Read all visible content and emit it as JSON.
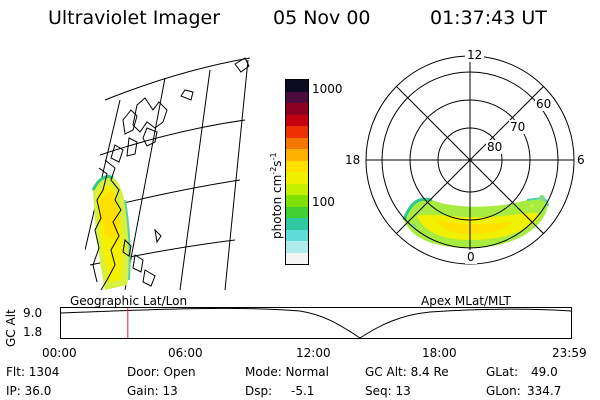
{
  "header": {
    "instrument": "Ultraviolet Imager",
    "date": "05 Nov 00",
    "time": "01:37:43 UT"
  },
  "colorbar": {
    "label_main": "photon cm",
    "label_exp1": "-2",
    "label_mid": "s",
    "label_exp2": "-1",
    "tick_top": "1000",
    "tick_mid": "100",
    "colors": [
      "#0b0b24",
      "#4b0b3c",
      "#8b0020",
      "#c40010",
      "#ee3000",
      "#f47800",
      "#ffb000",
      "#ffe000",
      "#eef000",
      "#c4f000",
      "#80e000",
      "#40d030",
      "#30c8a0",
      "#60dcd8",
      "#b0ecec",
      "#f4f4f4"
    ]
  },
  "polar_plot": {
    "mlt_labels": {
      "top": "12",
      "left": "18",
      "right": "6",
      "bottom": "0"
    },
    "lat_labels": [
      "60",
      "70",
      "80"
    ]
  },
  "timeline": {
    "left_label": "Geographic Lat/Lon",
    "right_label": "Apex MLat/MLT",
    "axis_title": "GC Alt",
    "y_top": "9.0",
    "y_bottom": "1.8",
    "x_ticks": [
      "00:00",
      "06:00",
      "12:00",
      "18:00",
      "23:59"
    ],
    "current_time_fraction": 0.131
  },
  "info": {
    "flt": "Flt: 1304",
    "ip": "IP: 36.0",
    "door": "Door: Open",
    "gain": "Gain: 13",
    "mode": "Mode: Normal",
    "dsp": "Dsp:",
    "dsp_val": "-5.1",
    "gc_alt": "GC Alt: 8.4 Re",
    "seq": "Seq: 13",
    "glat": "GLat:",
    "glat_val": "49.0",
    "glon": "GLon:",
    "glon_val": "334.7"
  }
}
